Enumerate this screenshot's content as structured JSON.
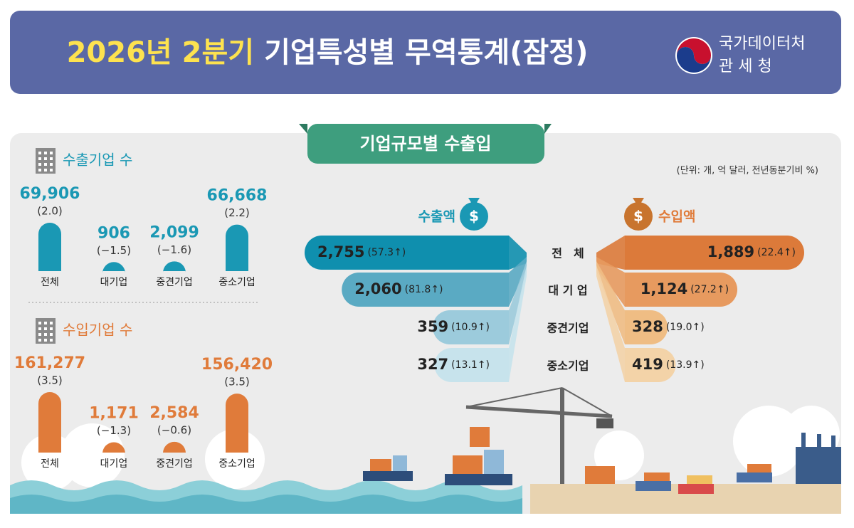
{
  "header": {
    "title_highlight": "2026년 2분기",
    "title": "기업특성별 무역통계(잠정)",
    "agency_line1": "국가데이터처",
    "agency_line2": "관 세 청"
  },
  "section_title": "기업규모별 수출입",
  "unit_note": "(단위: 개, 억 달러, 전년동분기비 %)",
  "export_firms": {
    "title": "수출기업 수",
    "categories": [
      "전체",
      "대기업",
      "중견기업",
      "중소기업"
    ],
    "values": [
      69906,
      906,
      2099,
      66668
    ],
    "value_labels": [
      "69,906",
      "906",
      "2,099",
      "66,668"
    ],
    "changes": [
      2.0,
      -1.5,
      -1.6,
      2.2
    ],
    "change_labels": [
      "(2.0)",
      "(−1.5)",
      "(−1.6)",
      "(2.2)"
    ],
    "color": "#1a98b4"
  },
  "import_firms": {
    "title": "수입기업 수",
    "categories": [
      "전체",
      "대기업",
      "중견기업",
      "중소기업"
    ],
    "values": [
      161277,
      1171,
      2584,
      156420
    ],
    "value_labels": [
      "161,277",
      "1,171",
      "2,584",
      "156,420"
    ],
    "changes": [
      3.5,
      -1.3,
      -0.6,
      3.5
    ],
    "change_labels": [
      "(3.5)",
      "(−1.3)",
      "(−0.6)",
      "(3.5)"
    ],
    "color": "#e07b3a"
  },
  "trade": {
    "export_title": "수출액",
    "import_title": "수입액",
    "icon_symbol": "$",
    "categories": [
      "전　체",
      "대 기 업",
      "중견기업",
      "중소기업"
    ],
    "exports": [
      2755,
      2060,
      359,
      327
    ],
    "export_labels": [
      "2,755",
      "2,060",
      "359",
      "327"
    ],
    "export_changes": [
      57.3,
      81.8,
      10.9,
      13.1
    ],
    "export_change_labels": [
      "(57.3↑)",
      "(81.8↑)",
      "(10.9↑)",
      "(13.1↑)"
    ],
    "export_colors": [
      "#0f8fae",
      "#5aaac3",
      "#9ccbdc",
      "#c7e3ec"
    ],
    "imports": [
      1889,
      1124,
      328,
      419
    ],
    "import_labels": [
      "1,889",
      "1,124",
      "328",
      "419"
    ],
    "import_changes": [
      22.4,
      27.2,
      19.0,
      13.9
    ],
    "import_change_labels": [
      "(22.4↑)",
      "(27.2↑)",
      "(19.0↑)",
      "(13.9↑)"
    ],
    "import_colors": [
      "#dc7a3a",
      "#e79a5f",
      "#efbd84",
      "#f3d3a8"
    ]
  }
}
